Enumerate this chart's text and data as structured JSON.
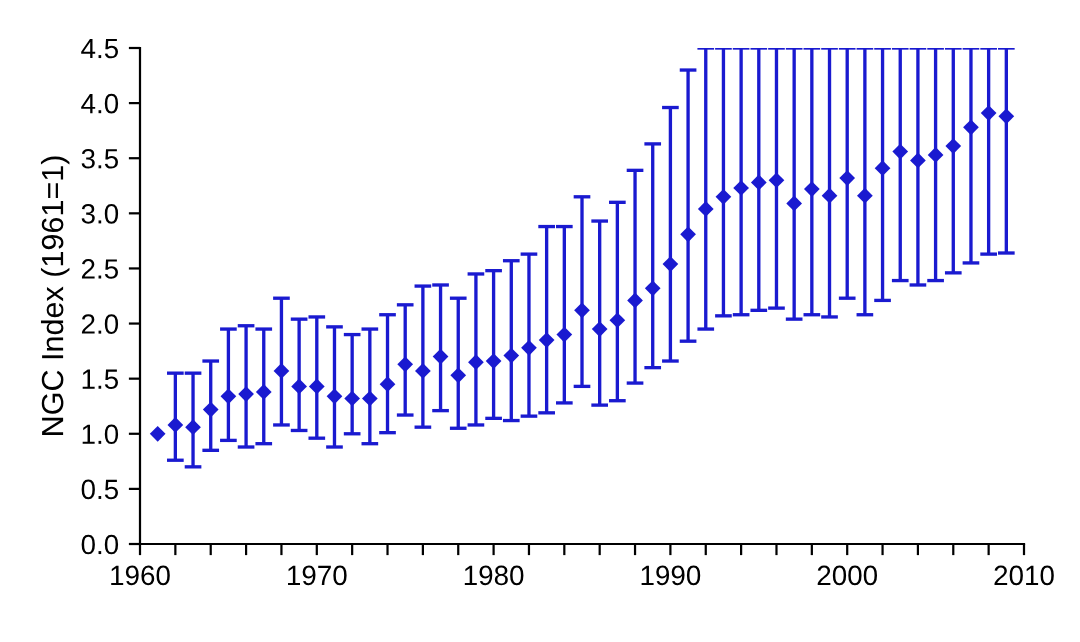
{
  "chart_data": {
    "type": "scatter",
    "ylabel": "NGC Index (1961=1)",
    "x": [
      1961,
      1962,
      1963,
      1964,
      1965,
      1966,
      1967,
      1968,
      1969,
      1970,
      1971,
      1972,
      1973,
      1974,
      1975,
      1976,
      1977,
      1978,
      1979,
      1980,
      1981,
      1982,
      1983,
      1984,
      1985,
      1986,
      1987,
      1988,
      1989,
      1990,
      1991,
      1992,
      1993,
      1994,
      1995,
      1996,
      1997,
      1998,
      1999,
      2000,
      2001,
      2002,
      2003,
      2004,
      2005,
      2006,
      2007,
      2008,
      2009
    ],
    "series": [
      {
        "color": "#1a1ad0",
        "values": [
          1.0,
          1.08,
          1.06,
          1.22,
          1.34,
          1.36,
          1.38,
          1.57,
          1.43,
          1.43,
          1.34,
          1.32,
          1.32,
          1.45,
          1.63,
          1.57,
          1.7,
          1.53,
          1.65,
          1.66,
          1.71,
          1.78,
          1.85,
          1.9,
          2.12,
          1.95,
          2.03,
          2.21,
          2.32,
          2.54,
          2.81,
          3.04,
          3.15,
          3.23,
          3.28,
          3.3,
          3.09,
          3.22,
          3.16,
          3.32,
          3.16,
          3.41,
          3.56,
          3.48,
          3.53,
          3.61,
          3.78,
          3.91,
          3.88
        ],
        "errors": [
          null,
          [
            0.76,
            1.55
          ],
          [
            0.7,
            1.55
          ],
          [
            0.85,
            1.66
          ],
          [
            0.94,
            1.95
          ],
          [
            0.88,
            1.98
          ],
          [
            0.91,
            1.95
          ],
          [
            1.08,
            2.23
          ],
          [
            1.03,
            2.04
          ],
          [
            0.96,
            2.06
          ],
          [
            0.88,
            1.97
          ],
          [
            1.0,
            1.9
          ],
          [
            0.91,
            1.95
          ],
          [
            1.01,
            2.08
          ],
          [
            1.17,
            2.17
          ],
          [
            1.06,
            2.34
          ],
          [
            1.21,
            2.35
          ],
          [
            1.05,
            2.23
          ],
          [
            1.08,
            2.45
          ],
          [
            1.14,
            2.48
          ],
          [
            1.12,
            2.57
          ],
          [
            1.16,
            2.63
          ],
          [
            1.19,
            2.88
          ],
          [
            1.28,
            2.88
          ],
          [
            1.43,
            3.15
          ],
          [
            1.26,
            2.93
          ],
          [
            1.3,
            3.1
          ],
          [
            1.46,
            3.39
          ],
          [
            1.6,
            3.63
          ],
          [
            1.66,
            3.96
          ],
          [
            1.84,
            4.3
          ],
          [
            1.95,
            4.5
          ],
          [
            2.07,
            4.5
          ],
          [
            2.08,
            4.5
          ],
          [
            2.12,
            4.5
          ],
          [
            2.14,
            4.5
          ],
          [
            2.04,
            4.5
          ],
          [
            2.08,
            4.5
          ],
          [
            2.06,
            4.5
          ],
          [
            2.23,
            4.5
          ],
          [
            2.08,
            4.5
          ],
          [
            2.21,
            4.5
          ],
          [
            2.39,
            4.5
          ],
          [
            2.35,
            4.5
          ],
          [
            2.39,
            4.5
          ],
          [
            2.46,
            4.5
          ],
          [
            2.55,
            4.5
          ],
          [
            2.63,
            4.5
          ],
          [
            2.64,
            4.5
          ]
        ]
      }
    ],
    "marker": "diamond",
    "xlim": [
      1960,
      2010
    ],
    "xticks": [
      1960,
      {
        "value": 1962,
        "label": null
      },
      {
        "value": 1964,
        "label": null
      },
      {
        "value": 1966,
        "label": null
      },
      {
        "value": 1968,
        "label": null
      },
      1970,
      {
        "value": 1972,
        "label": null
      },
      {
        "value": 1974,
        "label": null
      },
      {
        "value": 1976,
        "label": null
      },
      {
        "value": 1978,
        "label": null
      },
      1980,
      {
        "value": 1982,
        "label": null
      },
      {
        "value": 1984,
        "label": null
      },
      {
        "value": 1986,
        "label": null
      },
      {
        "value": 1988,
        "label": null
      },
      1990,
      {
        "value": 1992,
        "label": null
      },
      {
        "value": 1994,
        "label": null
      },
      {
        "value": 1996,
        "label": null
      },
      {
        "value": 1998,
        "label": null
      },
      2000,
      {
        "value": 2002,
        "label": null
      },
      {
        "value": 2004,
        "label": null
      },
      {
        "value": 2006,
        "label": null
      },
      {
        "value": 2008,
        "label": null
      },
      2010
    ],
    "ylim": [
      0,
      4.5
    ],
    "yticks": [
      {
        "value": 0,
        "label": "0.0"
      },
      {
        "value": 0.5,
        "label": "0.5"
      },
      {
        "value": 1,
        "label": "1.0"
      },
      {
        "value": 1.5,
        "label": "1.5"
      },
      {
        "value": 2,
        "label": "2.0"
      },
      {
        "value": 2.5,
        "label": "2.5"
      },
      {
        "value": 3,
        "label": "3.0"
      },
      {
        "value": 3.5,
        "label": "3.5"
      },
      {
        "value": 4,
        "label": "4.0"
      },
      {
        "value": 4.5,
        "label": "4.5"
      }
    ],
    "grid": false
  }
}
